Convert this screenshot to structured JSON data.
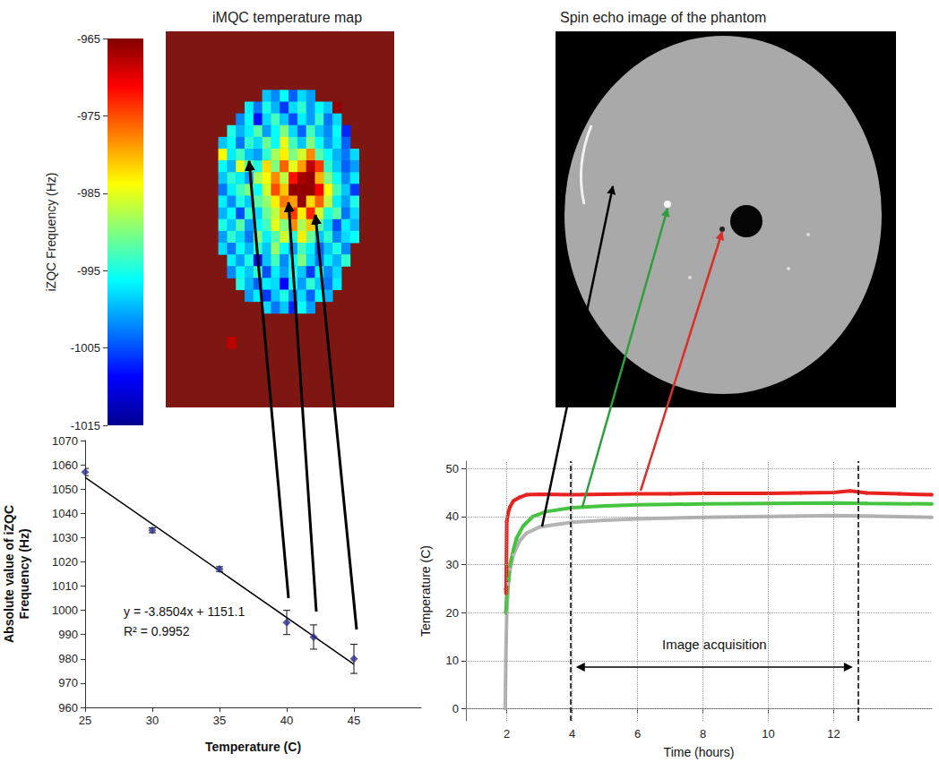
{
  "chart_data": [
    {
      "type": "heatmap",
      "title": "iMQC temperature map",
      "tick_labels": false,
      "colorbar": {
        "label": "iZQC Frequency (Hz)",
        "lim": [
          -1015,
          -965
        ],
        "ticks": [
          -965,
          -975,
          -985,
          -995,
          -1005,
          -1015
        ]
      },
      "cells": [
        [
          null,
          null,
          null,
          null,
          null,
          null,
          null,
          null,
          null,
          null,
          null,
          null,
          null,
          null,
          null,
          null,
          null,
          null,
          null,
          null,
          null,
          null,
          null,
          null,
          null,
          null
        ],
        [
          null,
          null,
          null,
          null,
          null,
          null,
          null,
          null,
          null,
          null,
          null,
          null,
          null,
          null,
          null,
          null,
          null,
          null,
          null,
          null,
          null,
          null,
          null,
          null,
          null,
          null
        ],
        [
          null,
          null,
          null,
          null,
          null,
          null,
          null,
          null,
          null,
          null,
          null,
          null,
          null,
          null,
          null,
          null,
          null,
          null,
          null,
          null,
          null,
          null,
          null,
          null,
          null,
          null
        ],
        [
          null,
          null,
          null,
          null,
          null,
          null,
          null,
          null,
          null,
          null,
          null,
          null,
          null,
          null,
          null,
          null,
          null,
          null,
          null,
          null,
          null,
          null,
          null,
          null,
          null,
          null
        ],
        [
          null,
          null,
          null,
          null,
          null,
          null,
          null,
          null,
          null,
          null,
          null,
          null,
          null,
          null,
          null,
          null,
          null,
          null,
          null,
          null,
          null,
          null,
          null,
          null,
          null,
          null
        ],
        [
          null,
          null,
          null,
          null,
          null,
          null,
          null,
          null,
          null,
          null,
          null,
          -999,
          -1002,
          -996,
          -1004,
          -998,
          -1001,
          null,
          null,
          null,
          null,
          null,
          null,
          null,
          null,
          null
        ],
        [
          null,
          null,
          null,
          null,
          null,
          null,
          null,
          null,
          null,
          -997,
          -1003,
          -995,
          -1000,
          -1006,
          -998,
          -994,
          -1001,
          -996,
          -999,
          -966,
          null,
          null,
          null,
          null,
          null,
          null
        ],
        [
          null,
          null,
          null,
          null,
          null,
          null,
          null,
          null,
          -1002,
          -996,
          -1008,
          -998,
          -993,
          -999,
          -1005,
          -997,
          -1001,
          -994,
          -1003,
          -998,
          null,
          null,
          null,
          null,
          null,
          null
        ],
        [
          null,
          null,
          null,
          null,
          null,
          null,
          null,
          -995,
          -1000,
          -997,
          -992,
          -1001,
          -996,
          -990,
          -998,
          -1004,
          -993,
          -999,
          -1002,
          -996,
          -1007,
          null,
          null,
          null,
          null,
          null
        ],
        [
          null,
          null,
          null,
          null,
          null,
          null,
          -999,
          -996,
          -1003,
          -994,
          -998,
          -991,
          -996,
          -985,
          -993,
          -999,
          -990,
          -996,
          -1001,
          -997,
          -1004,
          null,
          null,
          null,
          null,
          null
        ],
        [
          null,
          null,
          null,
          null,
          null,
          null,
          -984,
          -997,
          -993,
          -999,
          -1001,
          -994,
          -988,
          -983,
          -990,
          -986,
          -978,
          -992,
          -996,
          -1000,
          -1003,
          -998,
          null,
          null,
          null,
          null
        ],
        [
          null,
          null,
          null,
          null,
          null,
          null,
          -996,
          -1000,
          -985,
          -992,
          -995,
          -982,
          -990,
          -976,
          -985,
          -979,
          -968,
          -974,
          -994,
          -999,
          -1004,
          -1001,
          null,
          null,
          null,
          null
        ],
        [
          null,
          null,
          null,
          null,
          null,
          null,
          -999,
          -994,
          -997,
          -1001,
          -988,
          -984,
          -978,
          -987,
          -972,
          -967,
          -966,
          -980,
          -990,
          -996,
          -1002,
          -997,
          null,
          null,
          null,
          null
        ],
        [
          null,
          null,
          null,
          null,
          null,
          null,
          -1003,
          -997,
          -993,
          -990,
          -996,
          -986,
          -975,
          -981,
          -966,
          -966,
          -966,
          -971,
          -984,
          -993,
          -999,
          -1006,
          null,
          null,
          null,
          null
        ],
        [
          null,
          null,
          null,
          null,
          null,
          null,
          -997,
          -1002,
          -995,
          -999,
          -992,
          -989,
          -983,
          -977,
          -979,
          -966,
          -982,
          -976,
          -987,
          -997,
          -1001,
          -995,
          null,
          null,
          null,
          null
        ],
        [
          null,
          null,
          null,
          null,
          null,
          null,
          -1000,
          -996,
          -1005,
          -994,
          -998,
          -991,
          -987,
          -980,
          -974,
          -983,
          -973,
          -986,
          -995,
          -992,
          -1003,
          -998,
          null,
          null,
          null,
          null
        ],
        [
          null,
          null,
          null,
          null,
          null,
          null,
          -995,
          -999,
          -992,
          -1001,
          -996,
          -993,
          -985,
          -990,
          -978,
          -988,
          -981,
          -992,
          -998,
          -1005,
          -997,
          -1000,
          null,
          null,
          null,
          null
        ],
        [
          null,
          null,
          null,
          null,
          null,
          null,
          -1001,
          -994,
          -998,
          -1003,
          -990,
          -997,
          -992,
          -986,
          -995,
          -983,
          -991,
          -999,
          -994,
          -1002,
          -998,
          -996,
          null,
          null,
          null,
          null
        ],
        [
          null,
          null,
          null,
          null,
          null,
          null,
          -998,
          -1003,
          -996,
          -1000,
          -994,
          -999,
          -989,
          -996,
          -1001,
          -993,
          -997,
          -1004,
          -999,
          -995,
          -1002,
          null,
          null,
          null,
          null,
          null
        ],
        [
          null,
          null,
          null,
          null,
          null,
          null,
          null,
          -997,
          -1001,
          -995,
          -1008,
          -999,
          -993,
          -1002,
          -996,
          -990,
          -998,
          -1003,
          -997,
          -1000,
          -994,
          null,
          null,
          null,
          null,
          null
        ],
        [
          null,
          null,
          null,
          null,
          null,
          null,
          null,
          -1002,
          -996,
          -999,
          -994,
          -1005,
          -997,
          -1001,
          -995,
          -999,
          -1006,
          -996,
          -1002,
          -998,
          null,
          null,
          null,
          null,
          null,
          null
        ],
        [
          null,
          null,
          null,
          null,
          null,
          null,
          null,
          null,
          -995,
          -1000,
          -1004,
          -997,
          -998,
          -1009,
          -996,
          -1001,
          -994,
          -999,
          -1003,
          -997,
          null,
          null,
          null,
          null,
          null,
          null
        ],
        [
          null,
          null,
          null,
          null,
          null,
          null,
          null,
          null,
          null,
          -1001,
          -997,
          -1006,
          -999,
          -995,
          -1002,
          -998,
          -1004,
          -996,
          -1000,
          null,
          null,
          null,
          null,
          null,
          null,
          null
        ],
        [
          null,
          null,
          null,
          null,
          null,
          null,
          null,
          null,
          null,
          null,
          null,
          -998,
          -1003,
          -999,
          -1007,
          -996,
          -1001,
          null,
          null,
          null,
          null,
          null,
          null,
          null,
          null,
          null
        ],
        [
          null,
          null,
          null,
          null,
          null,
          null,
          null,
          null,
          null,
          null,
          null,
          null,
          null,
          null,
          null,
          null,
          null,
          null,
          null,
          null,
          null,
          null,
          null,
          null,
          null,
          null
        ],
        [
          null,
          null,
          null,
          null,
          null,
          null,
          null,
          null,
          null,
          null,
          null,
          null,
          null,
          null,
          null,
          null,
          null,
          null,
          null,
          null,
          null,
          null,
          null,
          null,
          null,
          null
        ],
        [
          null,
          null,
          null,
          null,
          null,
          null,
          null,
          -968,
          null,
          null,
          null,
          null,
          null,
          null,
          null,
          null,
          null,
          null,
          null,
          null,
          null,
          null,
          null,
          null,
          null,
          null
        ],
        [
          null,
          null,
          null,
          null,
          null,
          null,
          null,
          null,
          null,
          null,
          null,
          null,
          null,
          null,
          null,
          null,
          null,
          null,
          null,
          null,
          null,
          null,
          null,
          null,
          null,
          null
        ],
        [
          null,
          null,
          null,
          null,
          null,
          null,
          null,
          null,
          null,
          null,
          null,
          null,
          null,
          null,
          null,
          null,
          null,
          null,
          null,
          null,
          null,
          null,
          null,
          null,
          null,
          null
        ],
        [
          null,
          null,
          null,
          null,
          null,
          null,
          null,
          null,
          null,
          null,
          null,
          null,
          null,
          null,
          null,
          null,
          null,
          null,
          null,
          null,
          null,
          null,
          null,
          null,
          null,
          null
        ],
        [
          null,
          null,
          null,
          null,
          null,
          null,
          null,
          null,
          null,
          null,
          null,
          null,
          null,
          null,
          null,
          null,
          null,
          null,
          null,
          null,
          null,
          null,
          null,
          null,
          null,
          null
        ],
        [
          null,
          null,
          null,
          null,
          null,
          null,
          null,
          null,
          null,
          null,
          null,
          null,
          null,
          null,
          null,
          null,
          null,
          null,
          null,
          null,
          null,
          null,
          null,
          null,
          null,
          null
        ]
      ]
    },
    {
      "type": "scatter",
      "xlabel": "Temperature (C)",
      "ylabel": "Absolute value of iZQC Frequency (Hz)",
      "x": [
        25,
        30,
        35,
        40,
        42,
        45
      ],
      "values": [
        1057,
        1033,
        1017,
        995,
        989,
        980
      ],
      "errors": [
        1.5,
        1,
        1,
        5,
        5,
        6
      ],
      "color": "#2b2f8f",
      "marker": "diamond",
      "fit": {
        "x": [
          25,
          45
        ],
        "values": [
          1054.8,
          977.8
        ],
        "color": "#000000"
      },
      "annotations": [
        "y = -3.8504x + 1151.1",
        "R² = 0.9952"
      ],
      "xlim": [
        25,
        50
      ],
      "xticks": [
        25,
        30,
        35,
        40,
        45
      ],
      "ylim": [
        960,
        1070
      ],
      "yticks": [
        960,
        970,
        980,
        990,
        1000,
        1010,
        1020,
        1030,
        1040,
        1050,
        1060,
        1070
      ],
      "grid": false
    },
    {
      "type": "line",
      "xlabel": "Time (hours)",
      "ylabel": "Temperature (C)",
      "series": [
        {
          "color": "#b4b4b4",
          "line_style": "solid",
          "x": [
            1.95,
            1.96,
            1.97,
            1.98,
            2.0,
            2.05,
            2.1,
            2.2,
            2.4,
            2.6,
            3,
            4,
            5,
            6,
            8,
            10,
            12,
            13,
            15
          ],
          "values": [
            0,
            5,
            10,
            14,
            20,
            26,
            29,
            32,
            35,
            36.5,
            37.8,
            38.8,
            39.2,
            39.5,
            39.8,
            40,
            40.2,
            40.1,
            39.8
          ]
        },
        {
          "color": "#45c43f",
          "line_style": "solid",
          "x": [
            1.97,
            1.98,
            2.0,
            2.05,
            2.1,
            2.2,
            2.3,
            2.5,
            2.8,
            3.2,
            4,
            5,
            6,
            8,
            10,
            12,
            13,
            15
          ],
          "values": [
            20,
            21,
            24,
            27,
            30,
            33,
            35.5,
            38,
            40,
            41,
            41.8,
            42.2,
            42.4,
            42.6,
            42.7,
            42.8,
            42.7,
            42.6
          ]
        },
        {
          "color": "#e8231f",
          "line_style": "solid",
          "x": [
            1.97,
            1.98,
            2.0,
            2.05,
            2.1,
            2.2,
            2.4,
            2.6,
            3,
            4,
            5,
            6,
            7,
            8,
            9,
            10,
            11,
            12,
            12.5,
            13,
            14,
            15
          ],
          "values": [
            25,
            24,
            39,
            41,
            42,
            43.2,
            44,
            44.5,
            44.6,
            44.5,
            44.6,
            44.7,
            44.7,
            44.8,
            44.8,
            44.8,
            44.9,
            45.0,
            45.3,
            44.9,
            44.7,
            44.5
          ]
        }
      ],
      "vlines": [
        3.95,
        12.75
      ],
      "annotations": [
        "Image acquisition"
      ],
      "xlim": [
        0.75,
        15
      ],
      "xticks": [
        2,
        4,
        6,
        8,
        10,
        12
      ],
      "ylim": [
        -2.5,
        51.5
      ],
      "yticks": [
        0,
        10,
        20,
        30,
        40,
        50
      ],
      "grid": true
    }
  ],
  "image": {
    "title": "Spin echo image of the phantom"
  }
}
